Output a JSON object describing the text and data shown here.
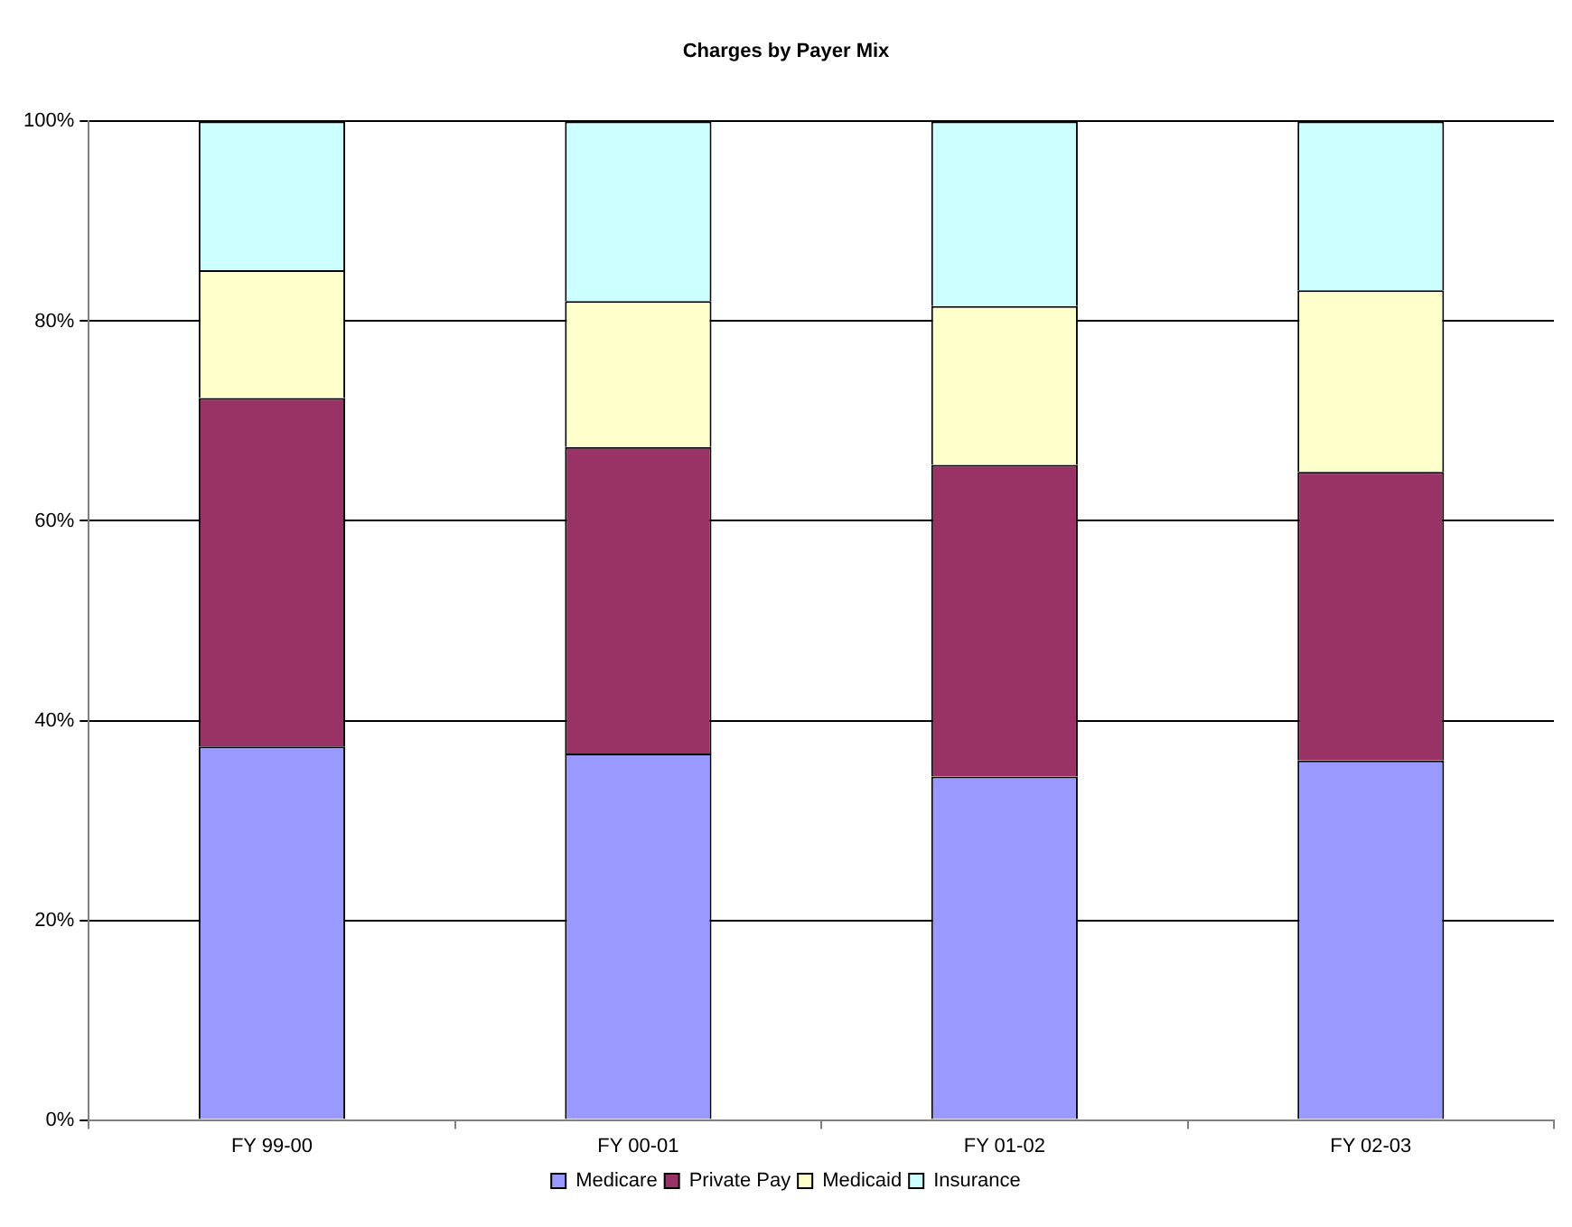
{
  "chart_data": {
    "type": "bar",
    "title": "Charges by Payer Mix",
    "stacked": true,
    "categories": [
      "FY 99-00",
      "FY 00-01",
      "FY 01-02",
      "FY 02-03"
    ],
    "series": [
      {
        "name": "Medicare",
        "color": "#9999ff",
        "values": [
          37.4,
          36.7,
          34.4,
          36.0
        ]
      },
      {
        "name": "Private Pay",
        "color": "#993366",
        "values": [
          34.9,
          30.7,
          31.2,
          28.9
        ]
      },
      {
        "name": "Medicaid",
        "color": "#ffffcc",
        "values": [
          12.8,
          14.6,
          15.9,
          18.2
        ]
      },
      {
        "name": "Insurance",
        "color": "#ccffff",
        "values": [
          14.9,
          18.0,
          18.5,
          16.9
        ]
      }
    ],
    "ylim": [
      0,
      100
    ],
    "yticks": [
      {
        "value": 0,
        "label": "0%"
      },
      {
        "value": 20,
        "label": "20%"
      },
      {
        "value": 40,
        "label": "40%"
      },
      {
        "value": 60,
        "label": "60%"
      },
      {
        "value": 80,
        "label": "80%"
      },
      {
        "value": 100,
        "label": "100%"
      }
    ],
    "grid": "y",
    "legend": "bottom"
  }
}
